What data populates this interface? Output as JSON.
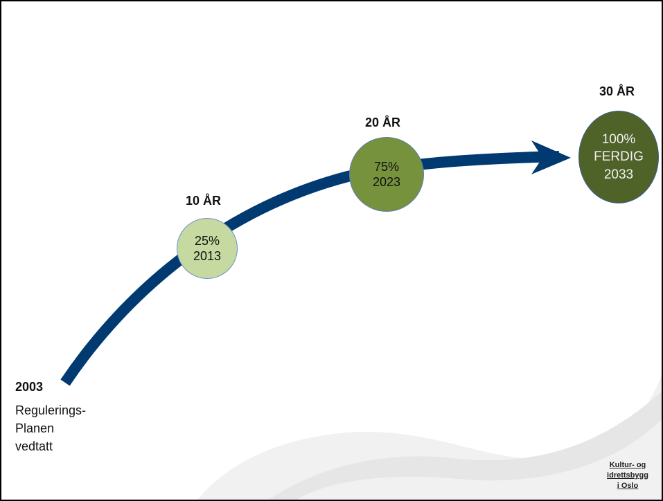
{
  "milestones": [
    {
      "label": "10 ÅR",
      "percent": "25%",
      "year": "2013",
      "color": "#c5d9a0"
    },
    {
      "label": "20 ÅR",
      "percent": "75%",
      "year": "2023",
      "color": "#76923c"
    },
    {
      "label": "30 ÅR",
      "percent": "100%",
      "status": "FERDIG",
      "year": "2033",
      "color": "#4f6228"
    }
  ],
  "start": {
    "year": "2003",
    "line1": "Regulerings-",
    "line2": "Planen",
    "line3": "vedtatt"
  },
  "colors": {
    "arrow": "#003a70"
  },
  "logo": {
    "line1": "Kultur- og",
    "line2": "idrettsbygg",
    "line3": "i Oslo"
  }
}
